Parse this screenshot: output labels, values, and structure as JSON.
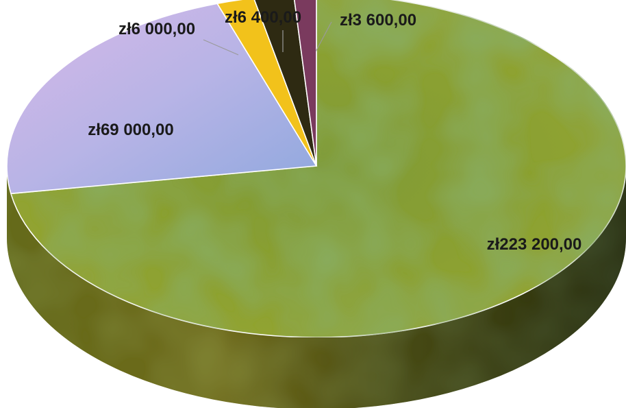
{
  "chart_data": {
    "type": "pie",
    "style": "3d",
    "slices": [
      {
        "label": "zł223 200,00",
        "value": 223200,
        "color": "#8a9a2e"
      },
      {
        "label": "zł69 000,00",
        "value": 69000,
        "color": "#c9b0e0"
      },
      {
        "label": "zł6 000,00",
        "value": 6000,
        "color": "#f2c21b"
      },
      {
        "label": "zł6 400,00",
        "value": 6400,
        "color": "#2e2a12"
      },
      {
        "label": "zł3 600,00",
        "value": 3600,
        "color": "#7a3a5e"
      }
    ]
  }
}
